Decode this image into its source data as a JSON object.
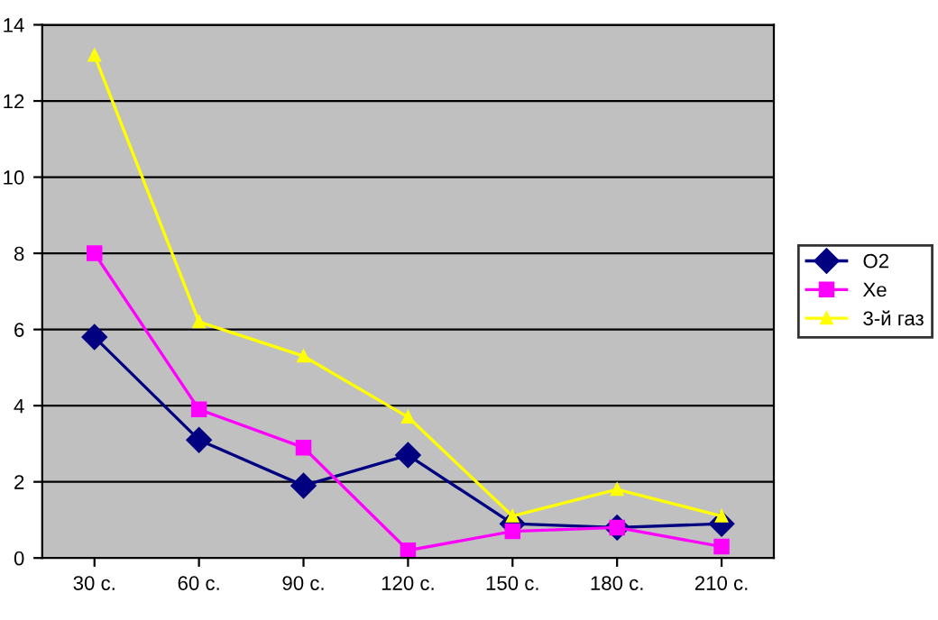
{
  "chart_data": {
    "type": "line",
    "categories": [
      "30 с.",
      "60 с.",
      "90 с.",
      "120 с.",
      "150 с.",
      "180 с.",
      "210 с."
    ],
    "series": [
      {
        "name": "O2",
        "color": "#000080",
        "marker": "diamond",
        "values": [
          5.8,
          3.1,
          1.9,
          2.7,
          0.9,
          0.8,
          0.9
        ]
      },
      {
        "name": "Xe",
        "color": "#ff00ff",
        "marker": "square",
        "values": [
          8.0,
          3.9,
          2.9,
          0.2,
          0.7,
          0.8,
          0.3
        ]
      },
      {
        "name": "3-й газ",
        "color": "#ffff00",
        "marker": "triangle",
        "values": [
          13.2,
          6.2,
          5.3,
          3.7,
          1.1,
          1.8,
          1.1
        ]
      }
    ],
    "ylim": [
      0,
      14
    ],
    "yticks": [
      0,
      2,
      4,
      6,
      8,
      10,
      12,
      14
    ],
    "grid": "y",
    "legend": "right"
  }
}
